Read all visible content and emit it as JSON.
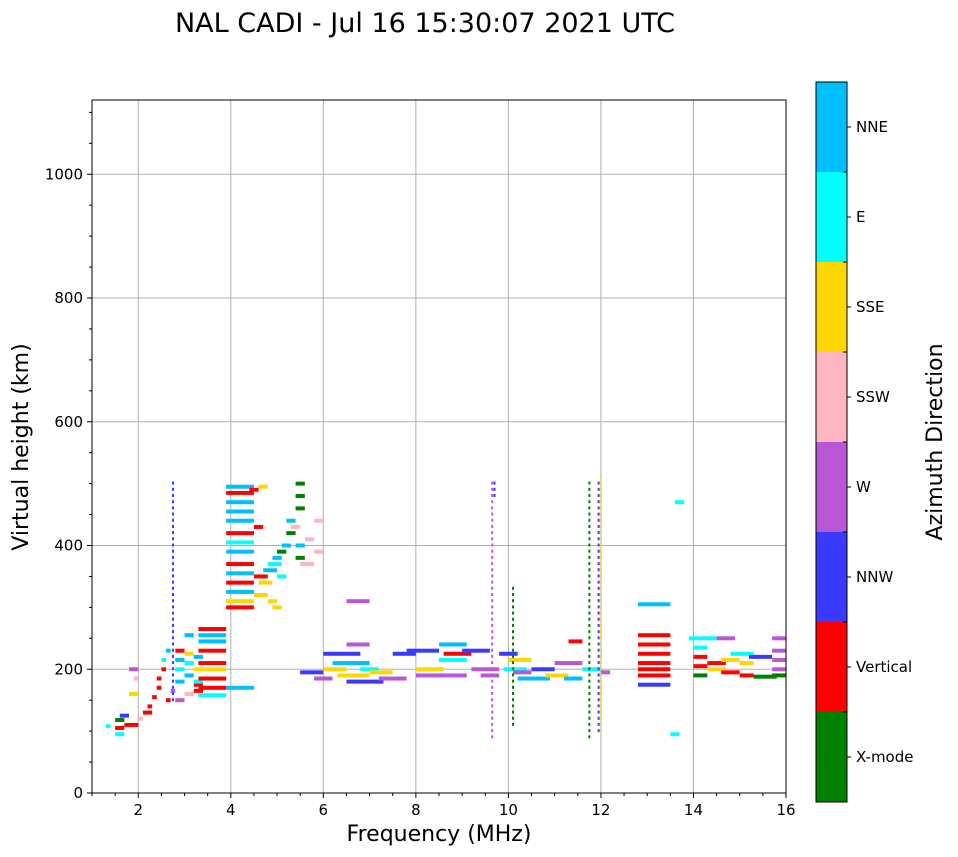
{
  "chart_data": {
    "type": "scatter",
    "title": "NAL CADI - Jul 16 15:30:07 2021 UTC",
    "xlabel": "Frequency (MHz)",
    "ylabel": "Virtual height (km)",
    "xlim": [
      1,
      16
    ],
    "ylim": [
      0,
      1120
    ],
    "xticks": [
      2,
      4,
      6,
      8,
      10,
      12,
      14,
      16
    ],
    "yticks": [
      0,
      200,
      400,
      600,
      800,
      1000
    ],
    "grid": true,
    "colorbar": {
      "label": "Azimuth Direction",
      "categories": [
        {
          "name": "X-mode",
          "color": "#008000"
        },
        {
          "name": "Vertical",
          "color": "#ff0000"
        },
        {
          "name": "NNW",
          "color": "#3a3aff"
        },
        {
          "name": "W",
          "color": "#b957d6"
        },
        {
          "name": "SSW",
          "color": "#ffb6c1"
        },
        {
          "name": "SSE",
          "color": "#ffd700"
        },
        {
          "name": "E",
          "color": "#00ffff"
        },
        {
          "name": "NNE",
          "color": "#00bfff"
        }
      ]
    },
    "series": [
      {
        "name": "F2 trace low",
        "note": "echo segments [f_start, f_end, height, category]",
        "points": [
          [
            1.3,
            1.4,
            108,
            "E"
          ],
          [
            1.5,
            1.7,
            95,
            "E"
          ],
          [
            1.5,
            1.7,
            105,
            "Vertical"
          ],
          [
            1.5,
            1.7,
            118,
            "X-mode"
          ],
          [
            1.6,
            1.8,
            125,
            "NNW"
          ],
          [
            1.7,
            2.0,
            110,
            "Vertical"
          ],
          [
            1.8,
            2.0,
            160,
            "SSE"
          ],
          [
            1.8,
            2.0,
            200,
            "W"
          ],
          [
            1.9,
            2.0,
            185,
            "SSW"
          ],
          [
            2.0,
            2.1,
            120,
            "SSW"
          ],
          [
            2.1,
            2.3,
            130,
            "Vertical"
          ],
          [
            2.2,
            2.3,
            140,
            "Vertical"
          ],
          [
            2.3,
            2.4,
            155,
            "Vertical"
          ],
          [
            2.4,
            2.5,
            170,
            "Vertical"
          ],
          [
            2.4,
            2.5,
            185,
            "Vertical"
          ],
          [
            2.5,
            2.6,
            200,
            "Vertical"
          ],
          [
            2.5,
            2.6,
            215,
            "E"
          ],
          [
            2.6,
            2.7,
            150,
            "Vertical"
          ],
          [
            2.6,
            2.7,
            230,
            "NNE"
          ],
          [
            2.7,
            2.8,
            165,
            "W"
          ],
          [
            2.8,
            3.0,
            150,
            "W"
          ],
          [
            2.8,
            3.0,
            180,
            "NNE"
          ],
          [
            2.8,
            3.0,
            200,
            "E"
          ],
          [
            2.8,
            3.0,
            215,
            "NNE"
          ],
          [
            2.8,
            3.0,
            230,
            "Vertical"
          ],
          [
            3.0,
            3.2,
            160,
            "SSW"
          ],
          [
            3.0,
            3.2,
            190,
            "NNE"
          ],
          [
            3.0,
            3.2,
            210,
            "E"
          ],
          [
            3.0,
            3.2,
            225,
            "SSE"
          ],
          [
            3.0,
            3.2,
            255,
            "NNE"
          ],
          [
            3.2,
            3.4,
            165,
            "Vertical"
          ],
          [
            3.2,
            3.4,
            175,
            "Vertical"
          ],
          [
            3.2,
            3.4,
            180,
            "E"
          ],
          [
            3.2,
            3.4,
            200,
            "SSE"
          ],
          [
            3.2,
            3.4,
            220,
            "NNE"
          ],
          [
            3.3,
            3.9,
            170,
            "Vertical"
          ],
          [
            3.3,
            3.9,
            185,
            "Vertical"
          ],
          [
            3.3,
            3.9,
            200,
            "SSE"
          ],
          [
            3.3,
            3.9,
            210,
            "Vertical"
          ],
          [
            3.3,
            3.9,
            230,
            "Vertical"
          ],
          [
            3.3,
            3.9,
            245,
            "NNE"
          ],
          [
            3.3,
            3.9,
            255,
            "NNE"
          ],
          [
            3.3,
            3.9,
            265,
            "Vertical"
          ],
          [
            3.3,
            3.9,
            158,
            "E"
          ],
          [
            3.9,
            4.5,
            170,
            "NNE"
          ]
        ]
      },
      {
        "name": "F2 trace high",
        "note": "echo segments [f_start, f_end, height, category]",
        "points": [
          [
            3.9,
            4.5,
            300,
            "Vertical"
          ],
          [
            3.9,
            4.5,
            310,
            "SSE"
          ],
          [
            3.9,
            4.5,
            325,
            "NNE"
          ],
          [
            3.9,
            4.5,
            340,
            "Vertical"
          ],
          [
            3.9,
            4.5,
            355,
            "NNE"
          ],
          [
            3.9,
            4.5,
            370,
            "Vertical"
          ],
          [
            3.9,
            4.5,
            390,
            "NNE"
          ],
          [
            3.9,
            4.5,
            405,
            "E"
          ],
          [
            3.9,
            4.5,
            420,
            "Vertical"
          ],
          [
            3.9,
            4.5,
            440,
            "NNE"
          ],
          [
            3.9,
            4.5,
            455,
            "NNE"
          ],
          [
            3.9,
            4.5,
            470,
            "NNE"
          ],
          [
            3.9,
            4.5,
            485,
            "Vertical"
          ],
          [
            3.9,
            4.5,
            495,
            "NNE"
          ],
          [
            4.5,
            4.7,
            430,
            "Vertical"
          ],
          [
            4.5,
            4.8,
            350,
            "Vertical"
          ],
          [
            4.5,
            4.8,
            320,
            "SSE"
          ],
          [
            4.6,
            4.9,
            340,
            "SSE"
          ],
          [
            4.7,
            5.0,
            360,
            "NNE"
          ],
          [
            4.8,
            5.1,
            370,
            "E"
          ],
          [
            4.9,
            5.1,
            380,
            "NNE"
          ],
          [
            5.0,
            5.2,
            390,
            "X-mode"
          ],
          [
            5.1,
            5.3,
            400,
            "NNE"
          ],
          [
            5.2,
            5.4,
            420,
            "X-mode"
          ],
          [
            5.3,
            5.5,
            430,
            "SSW"
          ],
          [
            5.4,
            5.6,
            380,
            "X-mode"
          ],
          [
            5.4,
            5.6,
            400,
            "NNE"
          ],
          [
            5.5,
            5.8,
            370,
            "SSW"
          ],
          [
            5.6,
            5.8,
            410,
            "SSW"
          ],
          [
            5.8,
            6.0,
            390,
            "SSW"
          ],
          [
            5.8,
            6.0,
            440,
            "SSW"
          ],
          [
            5.4,
            5.6,
            460,
            "X-mode"
          ],
          [
            5.4,
            5.6,
            480,
            "X-mode"
          ],
          [
            5.4,
            5.6,
            500,
            "X-mode"
          ],
          [
            4.8,
            5.0,
            310,
            "SSE"
          ],
          [
            4.4,
            4.6,
            490,
            "Vertical"
          ],
          [
            4.6,
            4.8,
            495,
            "SSE"
          ],
          [
            4.9,
            5.1,
            300,
            "SSE"
          ],
          [
            5.0,
            5.2,
            350,
            "E"
          ],
          [
            5.2,
            5.4,
            440,
            "NNE"
          ]
        ]
      },
      {
        "name": "F2 trace mid",
        "note": "echo segments [f_start, f_end, height, category]",
        "points": [
          [
            5.5,
            6.0,
            195,
            "NNW"
          ],
          [
            5.8,
            6.2,
            185,
            "W"
          ],
          [
            6.0,
            6.5,
            200,
            "SSE"
          ],
          [
            6.0,
            6.8,
            225,
            "NNW"
          ],
          [
            6.2,
            7.0,
            210,
            "NNE"
          ],
          [
            6.3,
            7.0,
            190,
            "SSE"
          ],
          [
            6.5,
            7.3,
            180,
            "NNW"
          ],
          [
            6.5,
            7.0,
            240,
            "W"
          ],
          [
            6.5,
            7.0,
            310,
            "W"
          ],
          [
            6.8,
            7.2,
            200,
            "E"
          ],
          [
            7.0,
            7.5,
            195,
            "SSE"
          ],
          [
            7.2,
            7.8,
            185,
            "W"
          ],
          [
            7.5,
            8.0,
            225,
            "NNW"
          ],
          [
            7.8,
            8.5,
            230,
            "NNW"
          ],
          [
            8.0,
            8.6,
            200,
            "SSE"
          ],
          [
            8.0,
            8.6,
            190,
            "W"
          ],
          [
            8.5,
            9.1,
            240,
            "NNE"
          ],
          [
            8.5,
            9.1,
            215,
            "E"
          ],
          [
            8.5,
            9.1,
            190,
            "W"
          ],
          [
            8.6,
            9.2,
            225,
            "Vertical"
          ],
          [
            9.0,
            9.6,
            230,
            "NNW"
          ],
          [
            9.2,
            9.8,
            200,
            "W"
          ],
          [
            9.4,
            9.8,
            190,
            "W"
          ],
          [
            9.8,
            10.2,
            225,
            "NNW"
          ],
          [
            9.9,
            10.4,
            200,
            "E"
          ],
          [
            10.0,
            10.5,
            215,
            "SSE"
          ],
          [
            10.1,
            10.5,
            195,
            "W"
          ],
          [
            10.2,
            10.9,
            185,
            "NNE"
          ],
          [
            10.5,
            11.0,
            200,
            "NNW"
          ],
          [
            10.8,
            11.3,
            190,
            "SSE"
          ],
          [
            11.0,
            11.6,
            210,
            "W"
          ],
          [
            11.2,
            11.6,
            185,
            "NNE"
          ],
          [
            11.3,
            11.6,
            245,
            "Vertical"
          ],
          [
            11.6,
            12.0,
            200,
            "E"
          ],
          [
            12.0,
            12.2,
            195,
            "W"
          ]
        ]
      },
      {
        "name": "F2 trace far",
        "note": "echo segments [f_start, f_end, height, category]",
        "points": [
          [
            12.8,
            13.5,
            305,
            "NNE"
          ],
          [
            12.8,
            13.5,
            255,
            "Vertical"
          ],
          [
            12.8,
            13.5,
            240,
            "Vertical"
          ],
          [
            12.8,
            13.5,
            225,
            "Vertical"
          ],
          [
            12.8,
            13.5,
            210,
            "Vertical"
          ],
          [
            12.8,
            13.5,
            200,
            "Vertical"
          ],
          [
            12.8,
            13.5,
            190,
            "Vertical"
          ],
          [
            12.8,
            13.5,
            175,
            "NNW"
          ],
          [
            13.5,
            13.7,
            95,
            "E"
          ],
          [
            13.9,
            14.5,
            250,
            "E"
          ],
          [
            14.0,
            14.3,
            235,
            "E"
          ],
          [
            14.0,
            14.3,
            220,
            "Vertical"
          ],
          [
            14.0,
            14.3,
            205,
            "Vertical"
          ],
          [
            14.0,
            14.3,
            190,
            "X-mode"
          ],
          [
            14.3,
            14.7,
            210,
            "Vertical"
          ],
          [
            14.3,
            14.7,
            200,
            "SSE"
          ],
          [
            14.5,
            14.9,
            250,
            "W"
          ],
          [
            14.6,
            15.0,
            215,
            "SSE"
          ],
          [
            14.6,
            15.0,
            195,
            "Vertical"
          ],
          [
            14.8,
            15.3,
            225,
            "E"
          ],
          [
            15.0,
            15.3,
            210,
            "SSE"
          ],
          [
            15.0,
            15.3,
            190,
            "Vertical"
          ],
          [
            15.2,
            15.7,
            220,
            "NNW"
          ],
          [
            15.3,
            15.8,
            188,
            "X-mode"
          ],
          [
            15.7,
            16.0,
            250,
            "W"
          ],
          [
            15.7,
            16.0,
            230,
            "W"
          ],
          [
            15.7,
            16.0,
            215,
            "W"
          ],
          [
            15.7,
            16.0,
            200,
            "W"
          ],
          [
            15.7,
            16.0,
            190,
            "X-mode"
          ],
          [
            13.6,
            13.8,
            470,
            "E"
          ]
        ]
      },
      {
        "name": "vertical streaks",
        "note": "[frequency, h_start, h_end, category]",
        "points": [
          [
            2.75,
            150,
            500,
            "NNW"
          ],
          [
            9.65,
            90,
            500,
            "W"
          ],
          [
            9.7,
            480,
            500,
            "NNW"
          ],
          [
            10.1,
            110,
            330,
            "X-mode"
          ],
          [
            11.75,
            90,
            500,
            "X-mode"
          ],
          [
            11.95,
            100,
            500,
            "NNW"
          ],
          [
            12.0,
            100,
            510,
            "SSE"
          ]
        ]
      }
    ]
  }
}
